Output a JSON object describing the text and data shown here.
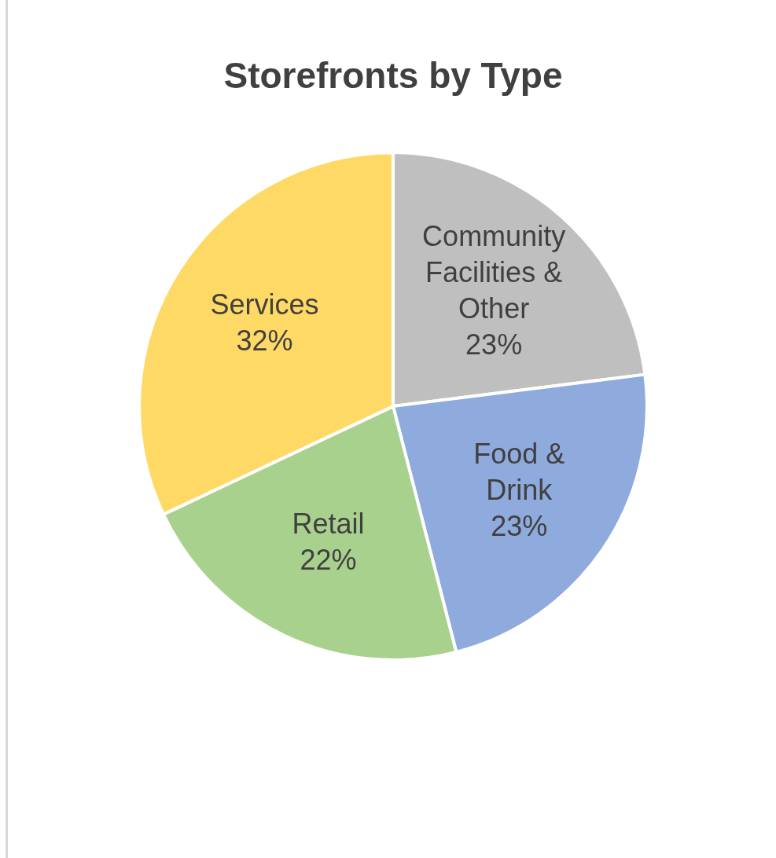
{
  "chart_data": {
    "type": "pie",
    "title": "Storefronts by Type",
    "categories": [
      "Community Facilities & Other",
      "Food & Drink",
      "Retail",
      "Services"
    ],
    "values": [
      23,
      23,
      22,
      32
    ],
    "value_labels": [
      "23%",
      "23%",
      "22%",
      "32%"
    ],
    "colors": [
      "#bfbfbf",
      "#8faadc",
      "#a9d18e",
      "#ffd966"
    ],
    "legend": false
  }
}
